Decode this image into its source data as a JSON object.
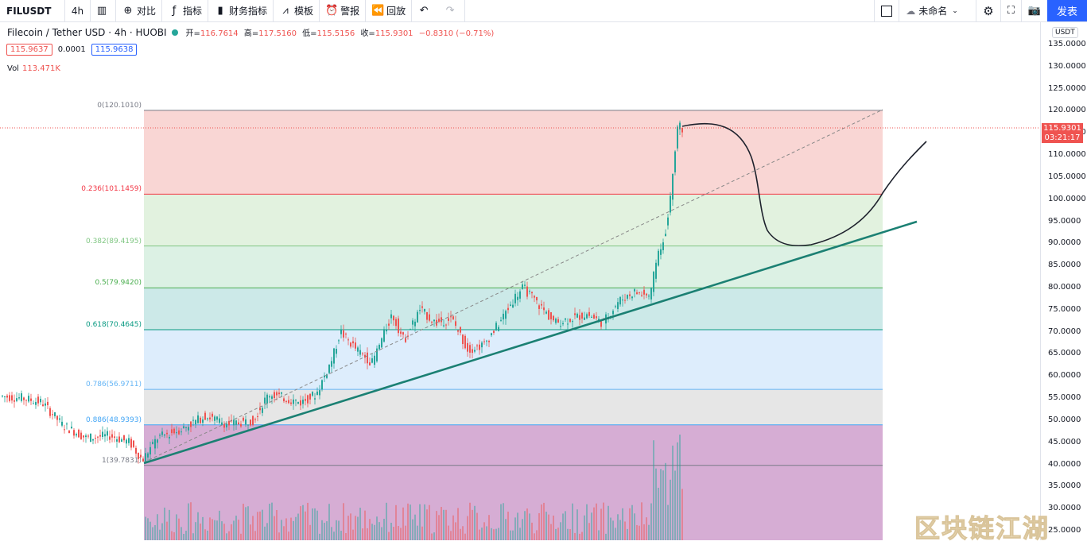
{
  "toolbar": {
    "symbol": "FILUSDT",
    "interval": "4h",
    "compare": "对比",
    "indicators": "指标",
    "financials": "财务指标",
    "templates": "模板",
    "alert": "警报",
    "replay": "回放",
    "layout_name": "未命名",
    "publish": "发表"
  },
  "legend": {
    "title": "Filecoin / Tether USD · 4h · HUOBI",
    "open_label": "开=",
    "open": "116.7614",
    "high_label": "高=",
    "high": "117.5160",
    "low_label": "低=",
    "low": "115.5156",
    "close_label": "收=",
    "close": "115.9301",
    "change": "−0.8310 (−0.71%)",
    "bid": "115.9637",
    "spread": "0.0001",
    "ask": "115.9638",
    "vol_label": "Vol",
    "vol_value": "113.471K"
  },
  "axis": {
    "currency": "USDT",
    "ticks": [
      "135.0000",
      "130.0000",
      "125.0000",
      "120.0000",
      "115.0000",
      "110.0000",
      "105.0000",
      "100.0000",
      "95.0000",
      "90.0000",
      "85.0000",
      "80.0000",
      "75.0000",
      "70.0000",
      "65.0000",
      "60.0000",
      "55.0000",
      "50.0000",
      "45.0000",
      "40.0000",
      "35.0000",
      "30.0000",
      "25.0000"
    ],
    "current_price": "115.9301",
    "countdown": "03:21:17"
  },
  "fib": {
    "levels": [
      {
        "label": "0(120.1010)",
        "price": 120.101,
        "color": "#787b86"
      },
      {
        "label": "0.236(101.1459)",
        "price": 101.1459,
        "color": "#f23645"
      },
      {
        "label": "0.382(89.4195)",
        "price": 89.4195,
        "color": "#81c784"
      },
      {
        "label": "0.5(79.9420)",
        "price": 79.942,
        "color": "#4caf50"
      },
      {
        "label": "0.618(70.4645)",
        "price": 70.4645,
        "color": "#089981"
      },
      {
        "label": "0.786(56.9711)",
        "price": 56.9711,
        "color": "#64b5f6"
      },
      {
        "label": "0.886(48.9393)",
        "price": 48.9393,
        "color": "#42a5f5"
      },
      {
        "label": "1(39.7831)",
        "price": 39.7831,
        "color": "#787b86"
      }
    ],
    "zones": [
      "#f7c4c2",
      "#d6ecd2",
      "#cdebd9",
      "#b6e0de",
      "#cfe6fb",
      "#dcdcdc",
      "#c48ac2"
    ]
  },
  "colors": {
    "up": "#26a69a",
    "down": "#ef5350",
    "trendline": "#1b8073",
    "accent": "#2962ff"
  },
  "watermark": "区块链江湖"
}
